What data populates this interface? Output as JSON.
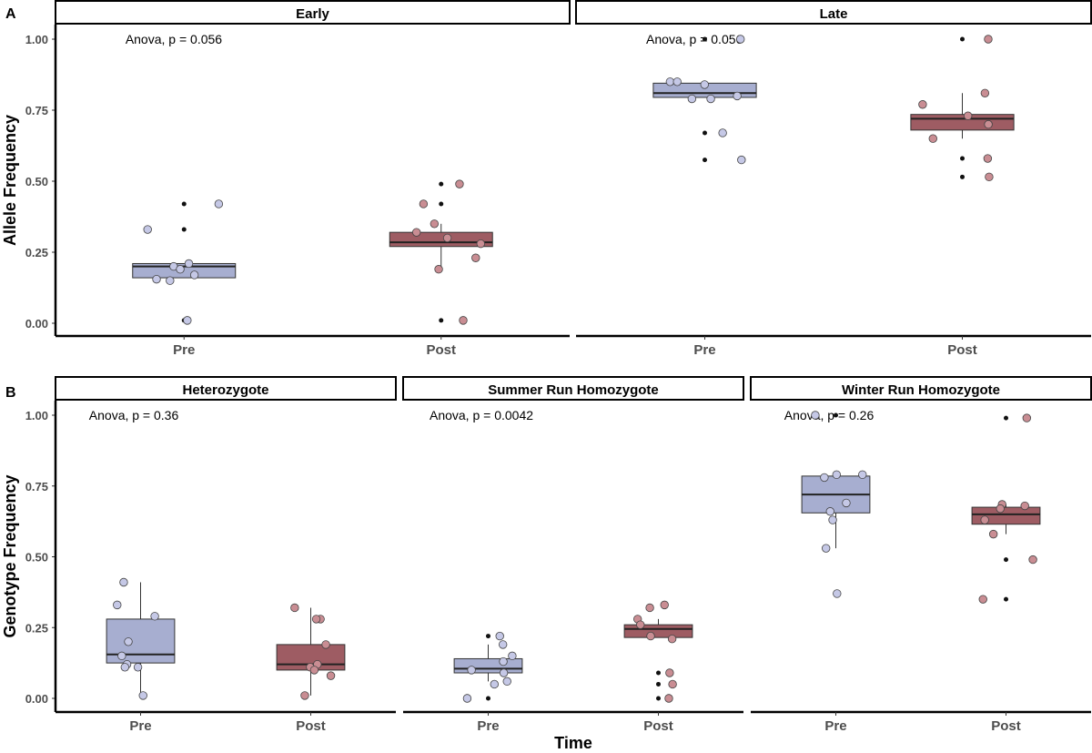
{
  "chart_data": [
    {
      "type": "box",
      "panel_letter": "A",
      "ylabel": "Allele Frequency",
      "ylim": [
        -0.04,
        1.06
      ],
      "yticks": [
        0.0,
        0.25,
        0.5,
        0.75,
        1.0
      ],
      "ytick_labels": [
        "0.00",
        "0.25",
        "0.50",
        "0.75",
        "1.00"
      ],
      "categories": [
        "Pre",
        "Post"
      ],
      "colors": {
        "Pre": "#a7aed0",
        "Post": "#9e5c63"
      },
      "point_colors": {
        "Pre": "#c5c8e6",
        "Post": "#c98d93"
      },
      "facets": [
        {
          "strip": "Early",
          "annotation": "Anova, p = 0.056",
          "boxes": [
            {
              "category": "Pre",
              "q1": 0.16,
              "median": 0.2,
              "q3": 0.21,
              "whisker_low": 0.16,
              "whisker_high": 0.21
            },
            {
              "category": "Post",
              "q1": 0.27,
              "median": 0.285,
              "q3": 0.32,
              "whisker_low": 0.19,
              "whisker_high": 0.35
            }
          ],
          "points": [
            {
              "category": "Pre",
              "values": [
                0.42,
                0.33,
                0.21,
                0.2,
                0.19,
                0.17,
                0.155,
                0.15,
                0.01
              ]
            },
            {
              "category": "Post",
              "values": [
                0.49,
                0.42,
                0.35,
                0.32,
                0.3,
                0.28,
                0.23,
                0.19,
                0.01
              ]
            }
          ],
          "outliers": [
            {
              "category": "Pre",
              "values": [
                0.42,
                0.33,
                0.01
              ]
            },
            {
              "category": "Post",
              "values": [
                0.49,
                0.42,
                0.01
              ]
            }
          ]
        },
        {
          "strip": "Late",
          "annotation": "Anova, p = 0.056",
          "boxes": [
            {
              "category": "Pre",
              "q1": 0.795,
              "median": 0.81,
              "q3": 0.845,
              "whisker_low": 0.795,
              "whisker_high": 0.845
            },
            {
              "category": "Post",
              "q1": 0.68,
              "median": 0.72,
              "q3": 0.735,
              "whisker_low": 0.65,
              "whisker_high": 0.81
            }
          ],
          "points": [
            {
              "category": "Pre",
              "values": [
                1.0,
                0.85,
                0.85,
                0.84,
                0.8,
                0.79,
                0.79,
                0.67,
                0.575
              ]
            },
            {
              "category": "Post",
              "values": [
                1.0,
                0.81,
                0.77,
                0.73,
                0.7,
                0.65,
                0.58,
                0.515
              ]
            }
          ],
          "outliers": [
            {
              "category": "Pre",
              "values": [
                1.0,
                0.67,
                0.575
              ]
            },
            {
              "category": "Post",
              "values": [
                1.0,
                0.58,
                0.515
              ]
            }
          ]
        }
      ]
    },
    {
      "type": "box",
      "panel_letter": "B",
      "ylabel": "Genotype Frequency",
      "xlabel": "Time",
      "ylim": [
        -0.04,
        1.06
      ],
      "yticks": [
        0.0,
        0.25,
        0.5,
        0.75,
        1.0
      ],
      "ytick_labels": [
        "0.00",
        "0.25",
        "0.50",
        "0.75",
        "1.00"
      ],
      "categories": [
        "Pre",
        "Post"
      ],
      "colors": {
        "Pre": "#a7aed0",
        "Post": "#9e5c63"
      },
      "point_colors": {
        "Pre": "#c5c8e6",
        "Post": "#c98d93"
      },
      "facets": [
        {
          "strip": "Heterozygote",
          "annotation": "Anova, p = 0.36",
          "boxes": [
            {
              "category": "Pre",
              "q1": 0.125,
              "median": 0.155,
              "q3": 0.28,
              "whisker_low": 0.01,
              "whisker_high": 0.41
            },
            {
              "category": "Post",
              "q1": 0.1,
              "median": 0.12,
              "q3": 0.19,
              "whisker_low": 0.01,
              "whisker_high": 0.32
            }
          ],
          "points": [
            {
              "category": "Pre",
              "values": [
                0.41,
                0.33,
                0.29,
                0.2,
                0.15,
                0.12,
                0.11,
                0.11,
                0.01
              ]
            },
            {
              "category": "Post",
              "values": [
                0.32,
                0.28,
                0.28,
                0.19,
                0.12,
                0.11,
                0.1,
                0.08,
                0.01
              ]
            }
          ],
          "outliers": []
        },
        {
          "strip": "Summer Run Homozygote",
          "annotation": "Anova, p = 0.0042",
          "boxes": [
            {
              "category": "Pre",
              "q1": 0.09,
              "median": 0.105,
              "q3": 0.14,
              "whisker_low": 0.06,
              "whisker_high": 0.19
            },
            {
              "category": "Post",
              "q1": 0.215,
              "median": 0.245,
              "q3": 0.26,
              "whisker_low": 0.215,
              "whisker_high": 0.28
            }
          ],
          "points": [
            {
              "category": "Pre",
              "values": [
                0.22,
                0.19,
                0.15,
                0.13,
                0.1,
                0.09,
                0.06,
                0.05,
                0.0
              ]
            },
            {
              "category": "Post",
              "values": [
                0.33,
                0.32,
                0.28,
                0.26,
                0.22,
                0.21,
                0.09,
                0.05,
                0.0
              ]
            }
          ],
          "outliers": [
            {
              "category": "Pre",
              "values": [
                0.22,
                0.0
              ]
            },
            {
              "category": "Post",
              "values": [
                0.09,
                0.05,
                0.0
              ]
            }
          ]
        },
        {
          "strip": "Winter Run Homozygote",
          "annotation": "Anova, p = 0.26",
          "boxes": [
            {
              "category": "Pre",
              "q1": 0.655,
              "median": 0.72,
              "q3": 0.785,
              "whisker_low": 0.53,
              "whisker_high": 0.79
            },
            {
              "category": "Post",
              "q1": 0.615,
              "median": 0.65,
              "q3": 0.675,
              "whisker_low": 0.58,
              "whisker_high": 0.685
            }
          ],
          "points": [
            {
              "category": "Pre",
              "values": [
                1.0,
                0.79,
                0.79,
                0.78,
                0.69,
                0.66,
                0.63,
                0.53,
                0.37
              ]
            },
            {
              "category": "Post",
              "values": [
                0.99,
                0.685,
                0.68,
                0.67,
                0.63,
                0.58,
                0.49,
                0.35
              ]
            }
          ],
          "outliers": [
            {
              "category": "Pre",
              "values": [
                1.0,
                0.37
              ]
            },
            {
              "category": "Post",
              "values": [
                0.99,
                0.49,
                0.35
              ]
            }
          ]
        }
      ]
    }
  ]
}
